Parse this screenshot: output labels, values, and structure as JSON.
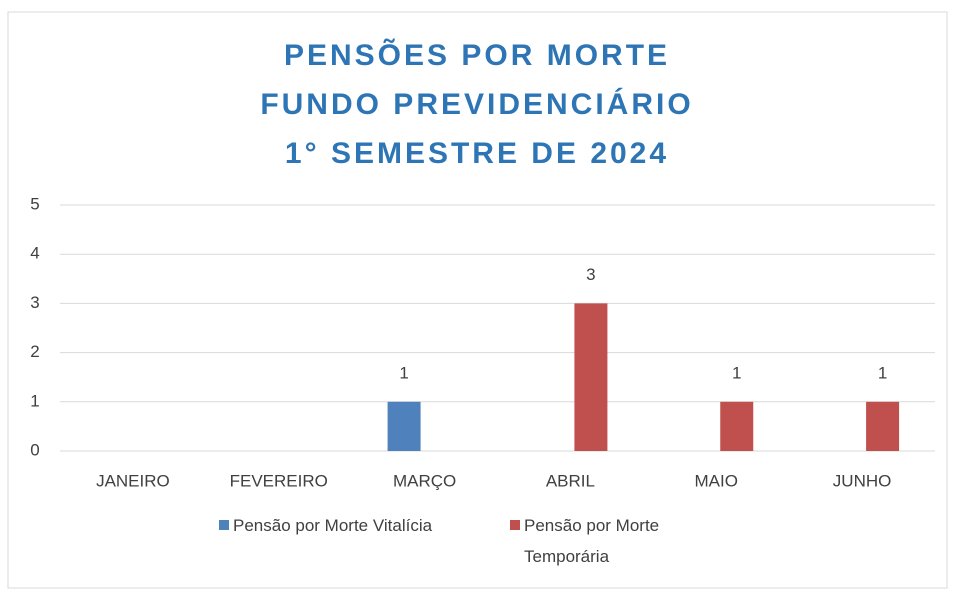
{
  "chart_data": {
    "type": "bar",
    "title": [
      "PENSÕES POR MORTE",
      "FUNDO PREVIDENCIÁRIO",
      "1° SEMESTRE DE 2024"
    ],
    "categories": [
      "JANEIRO",
      "FEVEREIRO",
      "MARÇO",
      "ABRIL",
      "MAIO",
      "JUNHO"
    ],
    "series": [
      {
        "name": "Pensão por Morte Vitalícia",
        "color": "#4f81bd",
        "values": [
          null,
          null,
          1,
          null,
          null,
          null
        ]
      },
      {
        "name": "Pensão por Morte Temporária",
        "color": "#c0504d",
        "values": [
          null,
          null,
          null,
          3,
          1,
          1
        ]
      }
    ],
    "ylim": [
      0,
      5
    ],
    "yticks": [
      0,
      1,
      2,
      3,
      4,
      5
    ],
    "grid": true,
    "legend": "bottom"
  }
}
